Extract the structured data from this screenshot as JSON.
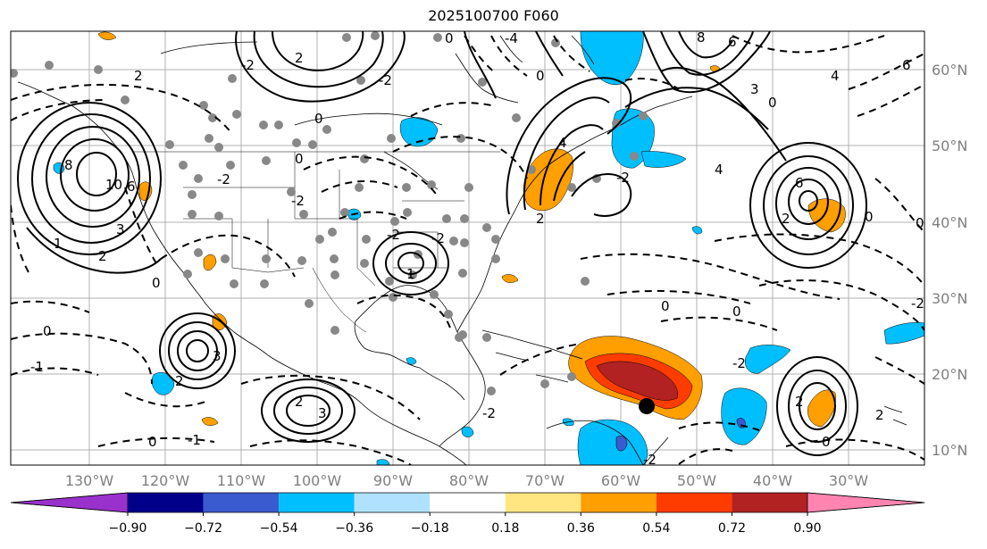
{
  "title": "2025100700 F060",
  "map": {
    "lat_labels": [
      "60°N",
      "50°N",
      "40°N",
      "30°N",
      "20°N",
      "10°N"
    ],
    "lon_labels": [
      "130°W",
      "120°W",
      "110°W",
      "100°W",
      "90°W",
      "80°W",
      "70°W",
      "60°W",
      "50°W",
      "40°W",
      "30°W"
    ]
  },
  "colorbar": {
    "labels": [
      "−0.90",
      "−0.72",
      "−0.54",
      "−0.36",
      "−0.18",
      "0.18",
      "0.36",
      "0.54",
      "0.72",
      "0.90"
    ],
    "colors": [
      "#9932cc",
      "#00008b",
      "#3a5bd0",
      "#00bfff",
      "#b0e2ff",
      "#ffffff",
      "#ffe680",
      "#ff9f00",
      "#ff3c00",
      "#b22222",
      "#ff85b0"
    ]
  },
  "colors": {
    "gray_grid": "#b0b0b0",
    "gray_dot": "#888888",
    "tick_label": "#7f7f7f"
  }
}
